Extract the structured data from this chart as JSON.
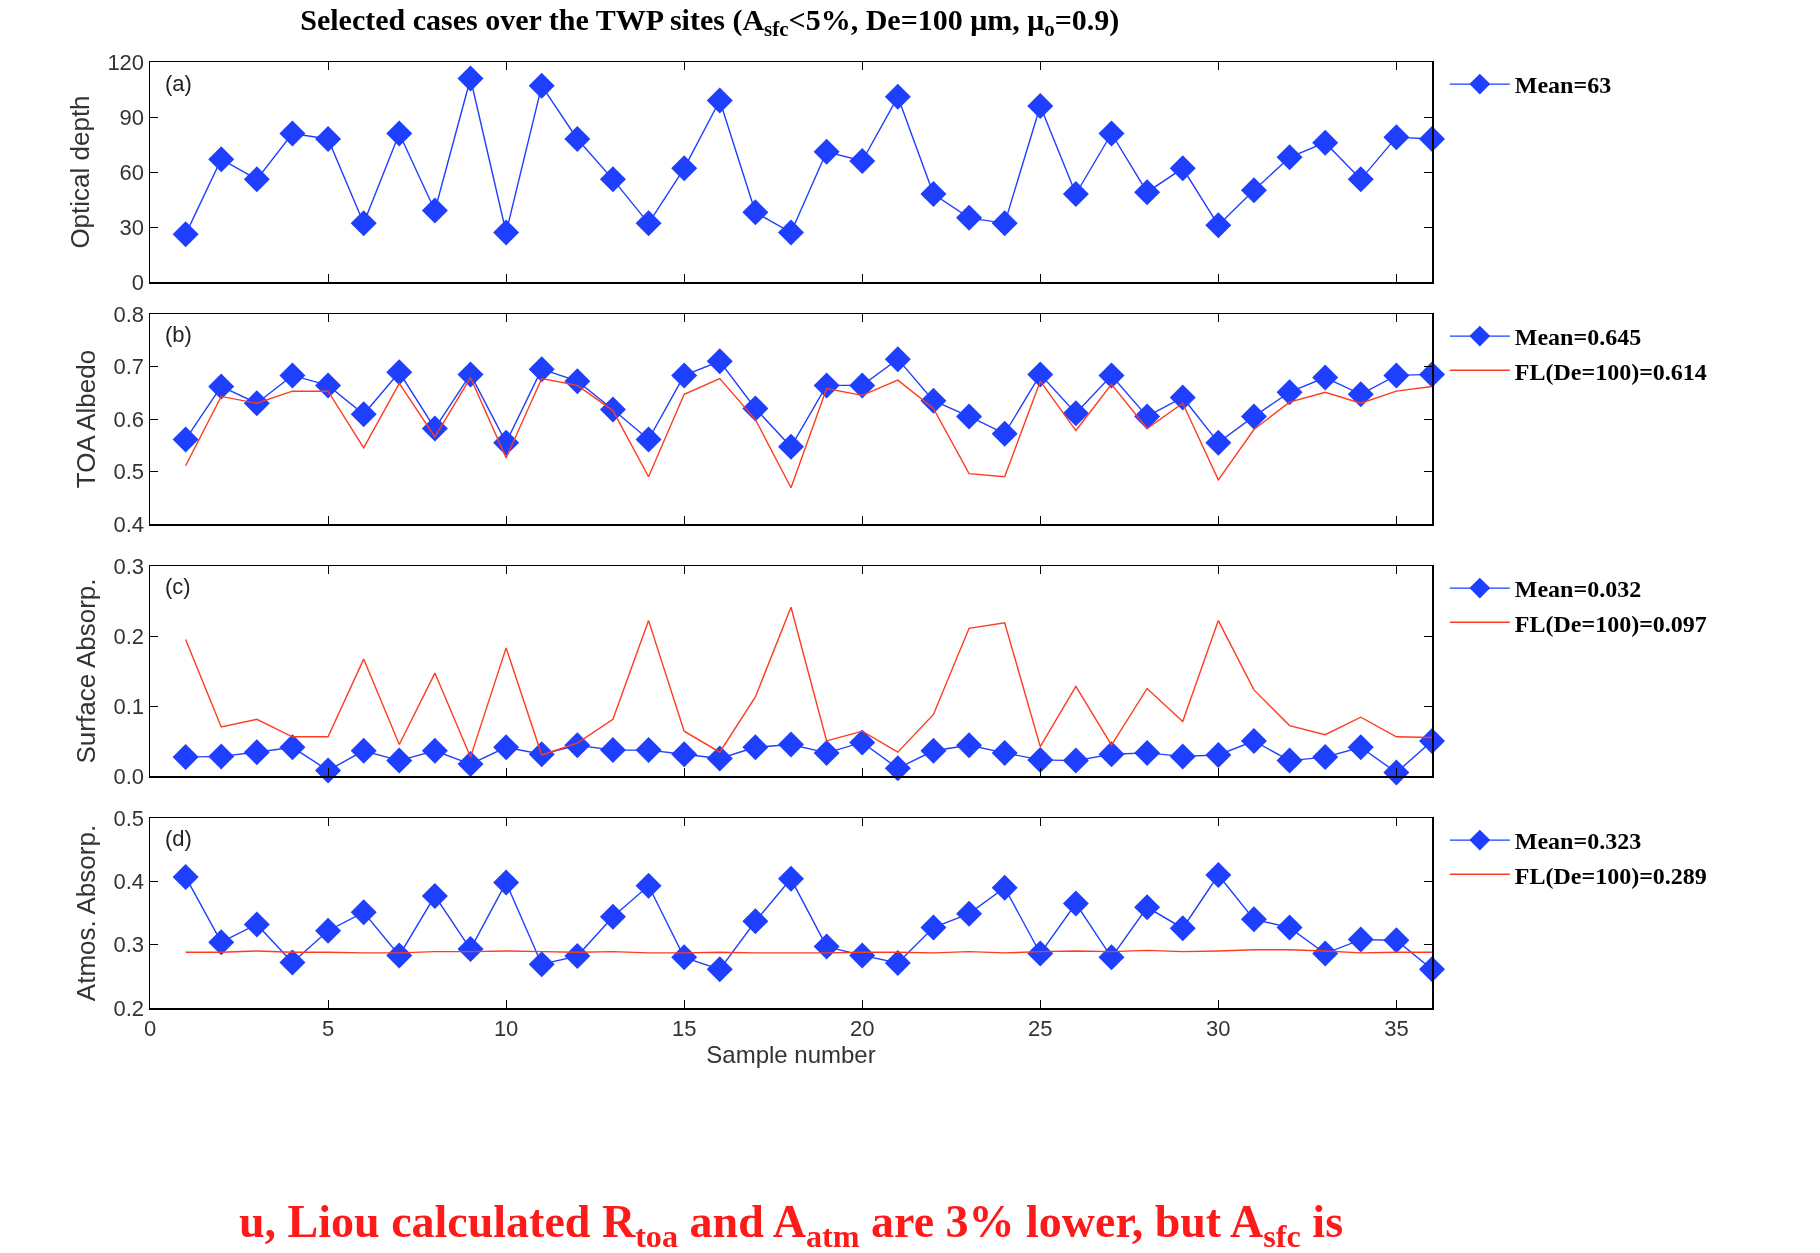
{
  "chart_data": [
    {
      "type": "line",
      "title": "Selected cases over the TWP sites (A$_{sfc}$<5%, De=100 μm, μ$_{o}$=0.9)",
      "ylabel": "Optical depth",
      "annotations": [
        "(a)"
      ],
      "x": [
        1,
        2,
        3,
        4,
        5,
        6,
        7,
        8,
        9,
        10,
        11,
        12,
        13,
        14,
        15,
        16,
        17,
        18,
        19,
        20,
        21,
        22,
        23,
        24,
        25,
        26,
        27,
        28,
        29,
        30,
        31,
        32,
        33,
        34,
        35,
        36
      ],
      "xlim": [
        0,
        36
      ],
      "xticks": [
        0,
        5,
        10,
        15,
        20,
        25,
        30,
        35
      ],
      "ylim": [
        0,
        120
      ],
      "yticks": [
        0,
        30,
        60,
        90,
        120
      ],
      "tick_labels": "y",
      "legend": "top right",
      "grid": false,
      "series": [
        {
          "name": "Mean=63",
          "color": "#1f3fff",
          "marker": "diamond",
          "values": [
            26,
            67,
            56,
            81,
            78,
            32,
            81,
            39,
            111,
            27,
            107,
            78,
            56,
            32,
            62,
            99,
            38,
            27,
            71,
            66,
            101,
            48,
            35,
            32,
            96,
            48,
            81,
            49,
            62,
            31,
            50,
            68,
            76,
            56,
            79,
            78
          ]
        }
      ]
    },
    {
      "type": "line",
      "ylabel": "TOA Albedo",
      "annotations": [
        "(b)"
      ],
      "x": [
        1,
        2,
        3,
        4,
        5,
        6,
        7,
        8,
        9,
        10,
        11,
        12,
        13,
        14,
        15,
        16,
        17,
        18,
        19,
        20,
        21,
        22,
        23,
        24,
        25,
        26,
        27,
        28,
        29,
        30,
        31,
        32,
        33,
        34,
        35,
        36
      ],
      "xlim": [
        0,
        36
      ],
      "xticks": [
        0,
        5,
        10,
        15,
        20,
        25,
        30,
        35
      ],
      "ylim": [
        0.4,
        0.8
      ],
      "yticks": [
        0.4,
        0.5,
        0.6,
        0.7,
        0.8
      ],
      "tick_labels": "y",
      "legend": "top right",
      "grid": false,
      "series": [
        {
          "name": "Mean=0.645",
          "color": "#1f3fff",
          "marker": "diamond",
          "values": [
            0.561,
            0.662,
            0.63,
            0.683,
            0.664,
            0.609,
            0.689,
            0.582,
            0.685,
            0.555,
            0.695,
            0.672,
            0.618,
            0.561,
            0.683,
            0.71,
            0.62,
            0.547,
            0.664,
            0.664,
            0.714,
            0.635,
            0.605,
            0.572,
            0.685,
            0.611,
            0.683,
            0.605,
            0.641,
            0.555,
            0.605,
            0.651,
            0.679,
            0.647,
            0.683,
            0.685
          ]
        },
        {
          "name": "FL(De=100)=0.614",
          "color": "#ff3b1f",
          "marker": "none",
          "values": [
            0.511,
            0.643,
            0.63,
            0.653,
            0.653,
            0.545,
            0.668,
            0.566,
            0.679,
            0.526,
            0.677,
            0.664,
            0.616,
            0.49,
            0.647,
            0.677,
            0.599,
            0.469,
            0.658,
            0.645,
            0.674,
            0.62,
            0.496,
            0.49,
            0.672,
            0.578,
            0.666,
            0.582,
            0.63,
            0.484,
            0.58,
            0.632,
            0.651,
            0.63,
            0.653,
            0.662
          ]
        }
      ]
    },
    {
      "type": "line",
      "ylabel": "Surface Absorp.",
      "annotations": [
        "(c)"
      ],
      "x": [
        1,
        2,
        3,
        4,
        5,
        6,
        7,
        8,
        9,
        10,
        11,
        12,
        13,
        14,
        15,
        16,
        17,
        18,
        19,
        20,
        21,
        22,
        23,
        24,
        25,
        26,
        27,
        28,
        29,
        30,
        31,
        32,
        33,
        34,
        35,
        36
      ],
      "xlim": [
        0,
        36
      ],
      "xticks": [
        0,
        5,
        10,
        15,
        20,
        25,
        30,
        35
      ],
      "ylim": [
        0,
        0.3
      ],
      "yticks": [
        {
          "value": 0,
          "label": "0.0"
        },
        0.1,
        0.2,
        0.3
      ],
      "tick_labels": "y",
      "legend": "top right",
      "grid": false,
      "series": [
        {
          "name": "Mean=0.032",
          "color": "#1f3fff",
          "marker": "diamond",
          "values": [
            0.027,
            0.028,
            0.034,
            0.041,
            0.008,
            0.036,
            0.022,
            0.036,
            0.017,
            0.041,
            0.031,
            0.044,
            0.037,
            0.037,
            0.031,
            0.025,
            0.041,
            0.045,
            0.033,
            0.048,
            0.011,
            0.036,
            0.044,
            0.033,
            0.023,
            0.022,
            0.031,
            0.033,
            0.028,
            0.03,
            0.05,
            0.022,
            0.027,
            0.041,
            0.005,
            0.05
          ]
        },
        {
          "name": "FL(De=100)=0.097",
          "color": "#ff3b1f",
          "marker": "none",
          "values": [
            0.195,
            0.07,
            0.081,
            0.056,
            0.056,
            0.167,
            0.045,
            0.147,
            0.027,
            0.183,
            0.03,
            0.047,
            0.081,
            0.222,
            0.064,
            0.034,
            0.113,
            0.241,
            0.05,
            0.064,
            0.034,
            0.088,
            0.211,
            0.219,
            0.042,
            0.128,
            0.044,
            0.125,
            0.078,
            0.222,
            0.123,
            0.072,
            0.059,
            0.084,
            0.056,
            0.055
          ]
        }
      ]
    },
    {
      "type": "line",
      "xlabel": "Sample number",
      "ylabel": "Atmos. Absorp.",
      "annotations": [
        "(d)",
        "u, Liou calculated R$_{toa}$ and A$_{atm}$ are 3% lower, but A$_{sfc}$ is"
      ],
      "x": [
        1,
        2,
        3,
        4,
        5,
        6,
        7,
        8,
        9,
        10,
        11,
        12,
        13,
        14,
        15,
        16,
        17,
        18,
        19,
        20,
        21,
        22,
        23,
        24,
        25,
        26,
        27,
        28,
        29,
        30,
        31,
        32,
        33,
        34,
        35,
        36
      ],
      "xlim": [
        0,
        36
      ],
      "xticks": [
        0,
        5,
        10,
        15,
        20,
        25,
        30,
        35
      ],
      "ylim": [
        0.2,
        0.5
      ],
      "yticks": [
        0.2,
        0.3,
        0.4,
        0.5
      ],
      "legend": "top right",
      "grid": false,
      "series": [
        {
          "name": "Mean=0.323",
          "color": "#1f3fff",
          "marker": "diamond",
          "values": [
            0.407,
            0.304,
            0.332,
            0.272,
            0.322,
            0.351,
            0.283,
            0.377,
            0.293,
            0.398,
            0.269,
            0.282,
            0.344,
            0.393,
            0.28,
            0.261,
            0.337,
            0.404,
            0.297,
            0.283,
            0.271,
            0.327,
            0.349,
            0.39,
            0.286,
            0.365,
            0.28,
            0.359,
            0.326,
            0.41,
            0.34,
            0.327,
            0.286,
            0.308,
            0.307,
            0.261
          ]
        },
        {
          "name": "FL(De=100)=0.289",
          "color": "#ff3b1f",
          "marker": "none",
          "values": [
            0.288,
            0.288,
            0.29,
            0.288,
            0.288,
            0.287,
            0.287,
            0.289,
            0.289,
            0.29,
            0.289,
            0.288,
            0.289,
            0.287,
            0.287,
            0.288,
            0.287,
            0.287,
            0.287,
            0.288,
            0.288,
            0.287,
            0.289,
            0.287,
            0.289,
            0.29,
            0.289,
            0.291,
            0.289,
            0.29,
            0.292,
            0.292,
            0.29,
            0.287,
            0.288,
            0.288
          ]
        }
      ]
    }
  ]
}
